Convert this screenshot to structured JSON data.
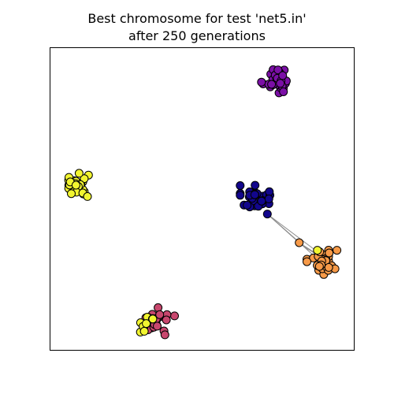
{
  "chart_data": {
    "type": "scatter",
    "title": [
      "Best chromosome for test 'net5.in'",
      "after 250 generations"
    ],
    "xlim": [
      0,
      1
    ],
    "ylim": [
      0,
      1
    ],
    "axis_ticks": false,
    "grid": false,
    "cluster_colors": {
      "purple": "#7b0fa6",
      "navy": "#12068c",
      "yellow": "#f2f530",
      "orange": "#f79a48",
      "pink": "#c8476e"
    },
    "clusters": [
      {
        "color": "purple",
        "center": [
          0.745,
          0.895
        ],
        "spread": [
          0.055,
          0.05
        ],
        "count": 34
      },
      {
        "color": "navy",
        "center": [
          0.675,
          0.505
        ],
        "spread": [
          0.055,
          0.045
        ],
        "count": 34
      },
      {
        "color": "yellow",
        "center": [
          0.085,
          0.545
        ],
        "spread": [
          0.045,
          0.045
        ],
        "count": 32
      },
      {
        "color": "orange",
        "center": [
          0.895,
          0.295
        ],
        "spread": [
          0.055,
          0.05
        ],
        "count": 32
      },
      {
        "color": "pink",
        "center": [
          0.355,
          0.095
        ],
        "spread": [
          0.06,
          0.05
        ],
        "count": 26
      },
      {
        "color": "yellow",
        "center": [
          0.315,
          0.095
        ],
        "spread": [
          0.035,
          0.04
        ],
        "count": 9
      }
    ],
    "extra_nodes": [
      {
        "color": "orange",
        "x": 0.82,
        "y": 0.355
      },
      {
        "color": "navy",
        "x": 0.715,
        "y": 0.45
      },
      {
        "color": "yellow",
        "x": 0.88,
        "y": 0.33
      }
    ],
    "edges": [
      {
        "from": [
          0.715,
          0.45
        ],
        "to": [
          0.82,
          0.355
        ]
      },
      {
        "from": [
          0.715,
          0.45
        ],
        "to": [
          0.85,
          0.33
        ]
      },
      {
        "from": [
          0.715,
          0.45
        ],
        "to": [
          0.865,
          0.315
        ]
      },
      {
        "from": [
          0.715,
          0.45
        ],
        "to": [
          0.88,
          0.325
        ]
      },
      {
        "from": [
          0.82,
          0.355
        ],
        "to": [
          0.87,
          0.32
        ]
      },
      {
        "from": [
          0.82,
          0.355
        ],
        "to": [
          0.89,
          0.31
        ]
      }
    ]
  }
}
